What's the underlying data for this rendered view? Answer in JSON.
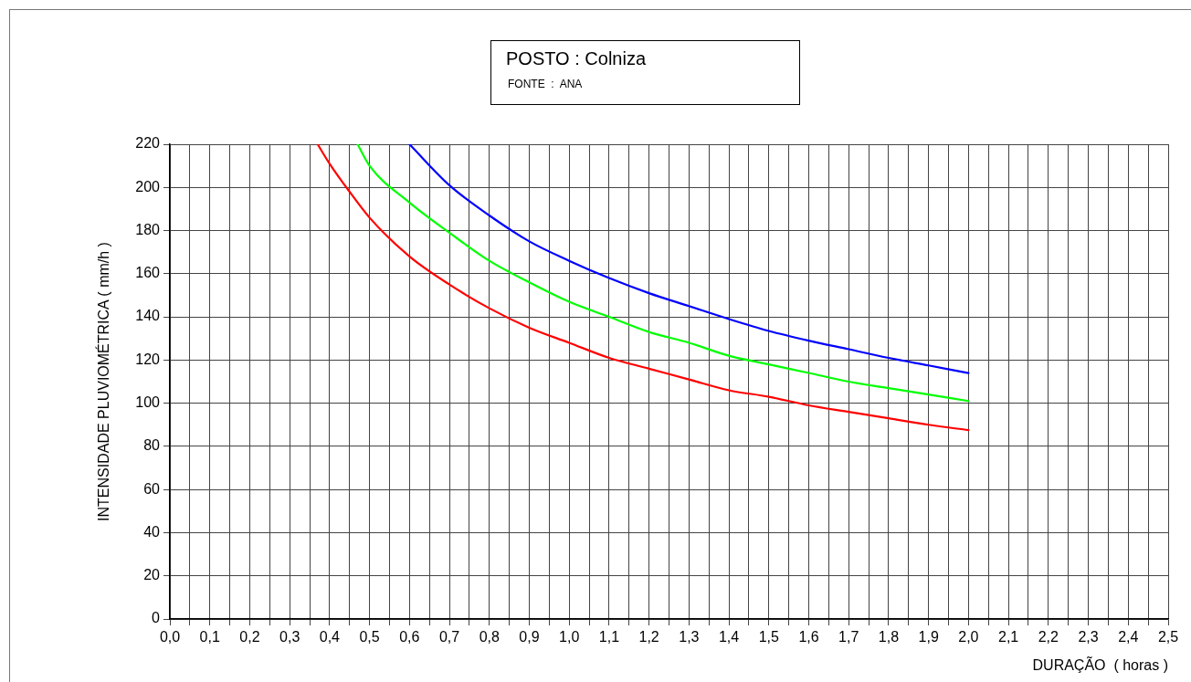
{
  "chart_data": {
    "type": "line",
    "title": "POSTO : Colniza",
    "subtitle": "FONTE  :  ANA",
    "xlabel": "DURAÇÃO  ( horas )",
    "ylabel": "INTENSIDADE PLUVIOMÉTRICA ( mm/h )",
    "series": [
      {
        "color": "#ff0000",
        "x": [
          0.37,
          0.4,
          0.45,
          0.5,
          0.6,
          0.7,
          0.8,
          0.9,
          1.0,
          1.1,
          1.2,
          1.3,
          1.4,
          1.5,
          1.6,
          1.7,
          1.8,
          1.9,
          2.0
        ],
        "values": [
          220,
          211,
          198,
          186,
          168,
          155,
          144,
          135,
          128,
          121,
          116,
          111,
          106,
          103,
          99,
          96,
          93,
          90,
          87.5
        ]
      },
      {
        "color": "#00ff00",
        "x": [
          0.47,
          0.5,
          0.6,
          0.7,
          0.8,
          0.9,
          1.0,
          1.1,
          1.2,
          1.3,
          1.4,
          1.5,
          1.6,
          1.7,
          1.8,
          1.9,
          2.0
        ],
        "values": [
          220,
          210,
          193,
          179,
          166,
          156,
          147,
          140,
          133,
          128,
          122,
          118,
          114,
          110,
          107,
          104,
          101
        ]
      },
      {
        "color": "#0000ff",
        "x": [
          0.6,
          0.7,
          0.8,
          0.9,
          1.0,
          1.1,
          1.2,
          1.3,
          1.4,
          1.5,
          1.6,
          1.7,
          1.8,
          1.9,
          2.0
        ],
        "values": [
          220,
          201,
          187,
          175,
          166,
          158,
          151,
          145,
          139,
          133.5,
          129,
          125,
          121,
          117.5,
          114
        ]
      }
    ],
    "xlim": [
      0,
      2.5
    ],
    "xticks": [
      {
        "value": 0,
        "label": "0,0"
      },
      {
        "value": 0.05,
        "label": null
      },
      {
        "value": 0.1,
        "label": "0,1"
      },
      {
        "value": 0.15,
        "label": null
      },
      {
        "value": 0.2,
        "label": "0,2"
      },
      {
        "value": 0.25,
        "label": null
      },
      {
        "value": 0.3,
        "label": "0,3"
      },
      {
        "value": 0.35,
        "label": null
      },
      {
        "value": 0.4,
        "label": "0,4"
      },
      {
        "value": 0.45,
        "label": null
      },
      {
        "value": 0.5,
        "label": "0,5"
      },
      {
        "value": 0.55,
        "label": null
      },
      {
        "value": 0.6,
        "label": "0,6"
      },
      {
        "value": 0.65,
        "label": null
      },
      {
        "value": 0.7,
        "label": "0,7"
      },
      {
        "value": 0.75,
        "label": null
      },
      {
        "value": 0.8,
        "label": "0,8"
      },
      {
        "value": 0.85,
        "label": null
      },
      {
        "value": 0.9,
        "label": "0,9"
      },
      {
        "value": 0.95,
        "label": null
      },
      {
        "value": 1.0,
        "label": "1,0"
      },
      {
        "value": 1.05,
        "label": null
      },
      {
        "value": 1.1,
        "label": "1,1"
      },
      {
        "value": 1.15,
        "label": null
      },
      {
        "value": 1.2,
        "label": "1,2"
      },
      {
        "value": 1.25,
        "label": null
      },
      {
        "value": 1.3,
        "label": "1,3"
      },
      {
        "value": 1.35,
        "label": null
      },
      {
        "value": 1.4,
        "label": "1,4"
      },
      {
        "value": 1.45,
        "label": null
      },
      {
        "value": 1.5,
        "label": "1,5"
      },
      {
        "value": 1.55,
        "label": null
      },
      {
        "value": 1.6,
        "label": "1,6"
      },
      {
        "value": 1.65,
        "label": null
      },
      {
        "value": 1.7,
        "label": "1,7"
      },
      {
        "value": 1.75,
        "label": null
      },
      {
        "value": 1.8,
        "label": "1,8"
      },
      {
        "value": 1.85,
        "label": null
      },
      {
        "value": 1.9,
        "label": "1,9"
      },
      {
        "value": 1.95,
        "label": null
      },
      {
        "value": 2.0,
        "label": "2,0"
      },
      {
        "value": 2.05,
        "label": null
      },
      {
        "value": 2.1,
        "label": "2,1"
      },
      {
        "value": 2.15,
        "label": null
      },
      {
        "value": 2.2,
        "label": "2,2"
      },
      {
        "value": 2.25,
        "label": null
      },
      {
        "value": 2.3,
        "label": "2,3"
      },
      {
        "value": 2.35,
        "label": null
      },
      {
        "value": 2.4,
        "label": "2,4"
      },
      {
        "value": 2.45,
        "label": null
      },
      {
        "value": 2.5,
        "label": "2,5"
      }
    ],
    "ylim": [
      0,
      220
    ],
    "yticks": [
      0,
      20,
      40,
      60,
      80,
      100,
      120,
      140,
      160,
      180,
      200,
      220
    ],
    "grid": true,
    "legend": false,
    "marker": "none",
    "line_style": "solid"
  }
}
